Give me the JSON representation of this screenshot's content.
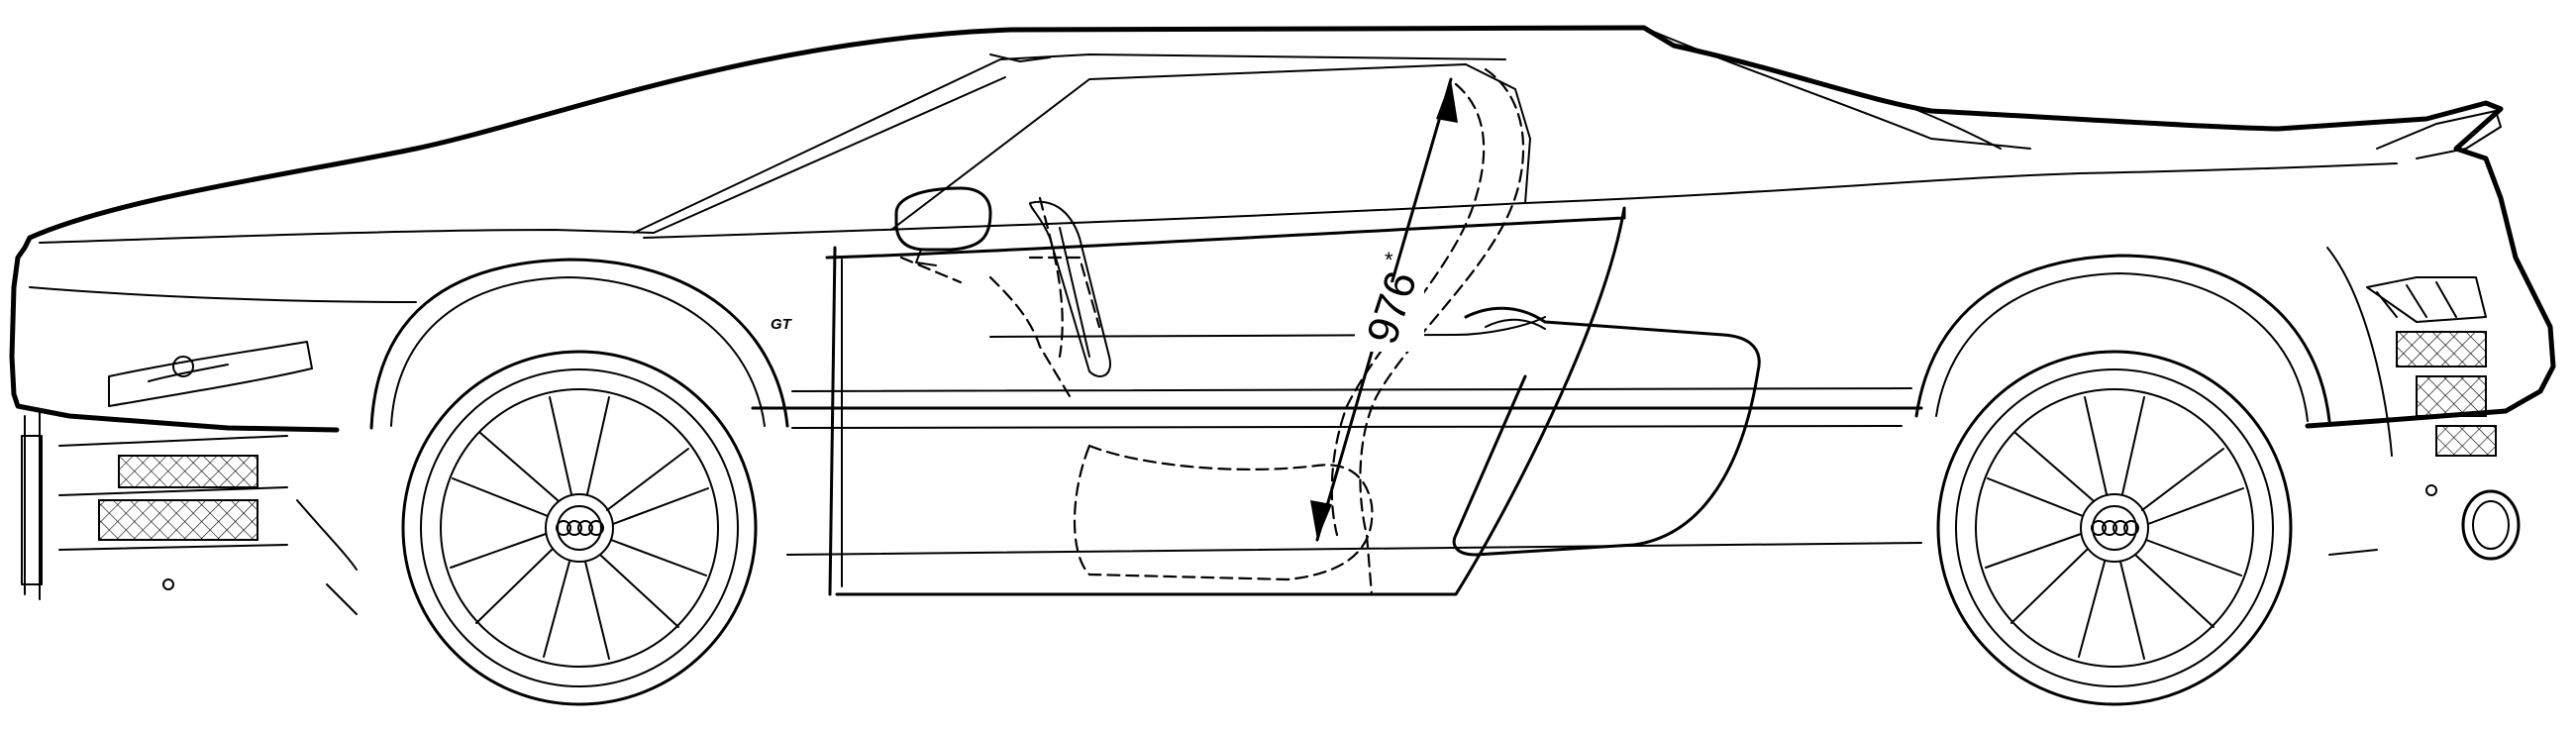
{
  "drawing": {
    "dimension_label": "976",
    "dimension_marker": "*",
    "badge_text": "GT"
  }
}
